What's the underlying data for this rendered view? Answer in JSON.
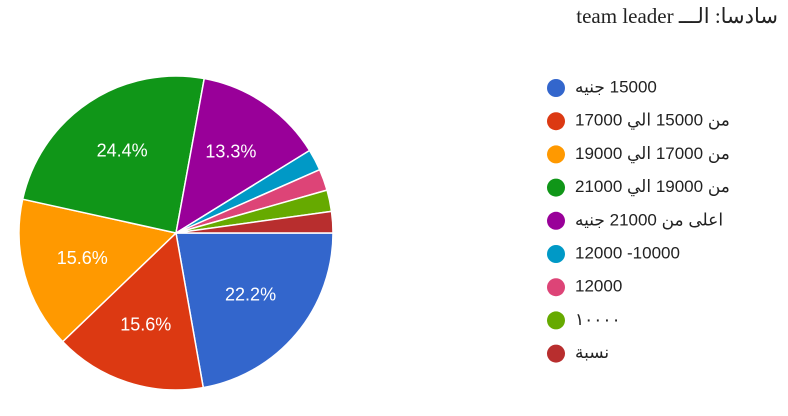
{
  "chart_data": {
    "type": "pie",
    "title": "سادسا: الـــ team leader",
    "categories": [
      "15000 جنيه",
      "من 15000 الي 17000",
      "من 17000 الي 19000",
      "من 19000 الي 21000",
      "اعلى من 21000 جنيه",
      "10000- 12000",
      "12000",
      "١٠٠٠٠",
      "نسبة"
    ],
    "values": [
      22.2,
      15.6,
      15.6,
      24.4,
      13.3,
      2.2,
      2.2,
      2.2,
      2.2
    ],
    "value_labels": [
      "22.2%",
      "15.6%",
      "15.6%",
      "24.4%",
      "13.3%",
      null,
      null,
      null,
      null
    ],
    "colors": [
      "#3366cc",
      "#dc3912",
      "#ff9900",
      "#109618",
      "#990099",
      "#0099c6",
      "#dd4477",
      "#66aa00",
      "#b82e2e"
    ]
  }
}
